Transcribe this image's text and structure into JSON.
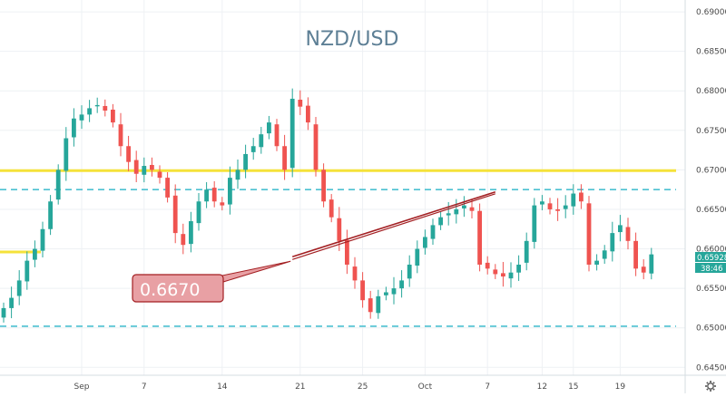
{
  "chart_data": {
    "type": "candlestick",
    "title": "NZD/USD",
    "y_axis": {
      "min": 0.644,
      "max": 0.6915,
      "ticks": [
        "0.69000",
        "0.68500",
        "0.68000",
        "0.67500",
        "0.67000",
        "0.66500",
        "0.66000",
        "0.65500",
        "0.65000",
        "0.64500"
      ]
    },
    "x_axis": {
      "ticks": [
        {
          "label": "Sep",
          "bar": 10
        },
        {
          "label": "7",
          "bar": 18
        },
        {
          "label": "14",
          "bar": 28
        },
        {
          "label": "21",
          "bar": 38
        },
        {
          "label": "25",
          "bar": 46
        },
        {
          "label": "Oct",
          "bar": 54
        },
        {
          "label": "7",
          "bar": 62
        },
        {
          "label": "12",
          "bar": 69
        },
        {
          "label": "15",
          "bar": 73
        },
        {
          "label": "19",
          "bar": 79
        }
      ]
    },
    "closes": [
      0.6525,
      0.6538,
      0.656,
      0.6585,
      0.66,
      0.6625,
      0.666,
      0.67,
      0.674,
      0.6765,
      0.677,
      0.6778,
      0.6782,
      0.6775,
      0.676,
      0.673,
      0.671,
      0.6695,
      0.6705,
      0.67,
      0.669,
      0.6665,
      0.662,
      0.6605,
      0.6635,
      0.666,
      0.6675,
      0.666,
      0.6655,
      0.669,
      0.67,
      0.672,
      0.673,
      0.6745,
      0.676,
      0.673,
      0.67,
      0.679,
      0.678,
      0.676,
      0.67,
      0.666,
      0.664,
      0.661,
      0.658,
      0.656,
      0.6535,
      0.652,
      0.654,
      0.6545,
      0.655,
      0.656,
      0.658,
      0.66,
      0.6615,
      0.663,
      0.664,
      0.6645,
      0.665,
      0.6655,
      0.6648,
      0.658,
      0.6575,
      0.6568,
      0.6565,
      0.657,
      0.658,
      0.661,
      0.6655,
      0.666,
      0.665,
      0.6648,
      0.6655,
      0.667,
      0.666,
      0.658,
      0.6585,
      0.6598,
      0.662,
      0.663,
      0.661,
      0.6575,
      0.657,
      0.6593
    ],
    "current_price": "0.65928",
    "countdown": "38:46",
    "horizontal_levels": [
      {
        "price": 0.6699,
        "style": "solid",
        "color": "#f5e23a"
      },
      {
        "price": 0.6675,
        "style": "dashed",
        "color": "#4cc1d1"
      },
      {
        "price": 0.6502,
        "style": "dashed",
        "color": "#4cc1d1"
      },
      {
        "price": 0.6596,
        "style": "solid-short",
        "color": "#f5e23a"
      }
    ],
    "trendline": {
      "from": {
        "bar": 37,
        "price": 0.659
      },
      "to": {
        "bar": 63,
        "price": 0.6672
      },
      "color": "#a31f22"
    },
    "annotation": {
      "text": "0.6670",
      "color_fill": "#e8a0a4",
      "color_border": "#a31f22"
    },
    "colors": {
      "up": "#26a69a",
      "down": "#ef5350",
      "accent": "#2962ff"
    }
  },
  "ui": {
    "settings_icon": "gear-icon"
  }
}
